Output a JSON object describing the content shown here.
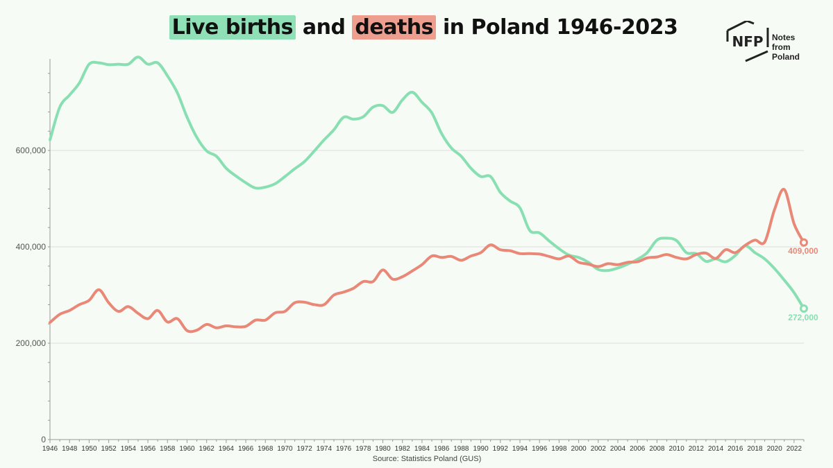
{
  "title": {
    "births_label": "Live births",
    "and_label": " and ",
    "deaths_label": "deaths",
    "rest_label": " in Poland 1946-2023"
  },
  "logo": {
    "mark": "NFP",
    "line1": "Notes from",
    "line2": "Poland"
  },
  "source": "Source: Statistics Poland (GUS)",
  "colors": {
    "births": "#88dfb2",
    "deaths": "#ea8878",
    "grid": "#dcdcdc",
    "axis": "#999999"
  },
  "chart_data": {
    "type": "line",
    "title": "Live births and deaths in Poland 1946-2023",
    "xlabel": "",
    "ylabel": "",
    "xlim": [
      1946,
      2023
    ],
    "ylim": [
      0,
      790000
    ],
    "yticks": [
      0,
      200000,
      400000,
      600000
    ],
    "ytick_labels": [
      "0",
      "200,000",
      "400,000",
      "600,000"
    ],
    "xticks": [
      1946,
      1948,
      1950,
      1952,
      1954,
      1956,
      1958,
      1960,
      1962,
      1964,
      1966,
      1968,
      1970,
      1972,
      1974,
      1976,
      1978,
      1980,
      1982,
      1984,
      1986,
      1988,
      1990,
      1992,
      1994,
      1996,
      1998,
      2000,
      2002,
      2004,
      2006,
      2008,
      2010,
      2012,
      2014,
      2016,
      2018,
      2020,
      2022
    ],
    "x": [
      1946,
      1947,
      1948,
      1949,
      1950,
      1951,
      1952,
      1953,
      1954,
      1955,
      1956,
      1957,
      1958,
      1959,
      1960,
      1961,
      1962,
      1963,
      1964,
      1965,
      1966,
      1967,
      1968,
      1969,
      1970,
      1971,
      1972,
      1973,
      1974,
      1975,
      1976,
      1977,
      1978,
      1979,
      1980,
      1981,
      1982,
      1983,
      1984,
      1985,
      1986,
      1987,
      1988,
      1989,
      1990,
      1991,
      1992,
      1993,
      1994,
      1995,
      1996,
      1997,
      1998,
      1999,
      2000,
      2001,
      2002,
      2003,
      2004,
      2005,
      2006,
      2007,
      2008,
      2009,
      2010,
      2011,
      2012,
      2013,
      2014,
      2015,
      2016,
      2017,
      2018,
      2019,
      2020,
      2021,
      2022,
      2023
    ],
    "series": [
      {
        "name": "Live births",
        "color": "#88dfb2",
        "end_label": "272,000",
        "values": [
          622000,
          690000,
          715000,
          740000,
          779000,
          782000,
          778000,
          779000,
          779000,
          794000,
          779000,
          782000,
          755000,
          720000,
          669000,
          627000,
          599000,
          588000,
          563000,
          547000,
          533000,
          522000,
          524000,
          531000,
          546000,
          562000,
          577000,
          599000,
          622000,
          643000,
          669000,
          665000,
          670000,
          690000,
          693000,
          679000,
          705000,
          721000,
          700000,
          678000,
          635000,
          605000,
          588000,
          563000,
          546000,
          546000,
          513000,
          495000,
          481000,
          434000,
          429000,
          412000,
          396000,
          383000,
          378000,
          368000,
          353000,
          351000,
          356000,
          364000,
          374000,
          388000,
          414000,
          418000,
          413000,
          388000,
          386000,
          370000,
          375000,
          369000,
          382000,
          402000,
          388000,
          375000,
          355000,
          331000,
          305000,
          272000
        ]
      },
      {
        "name": "Deaths",
        "color": "#ea8878",
        "end_label": "409,000",
        "values": [
          243000,
          260000,
          268000,
          280000,
          289000,
          311000,
          284000,
          266000,
          276000,
          262000,
          251000,
          268000,
          244000,
          251000,
          226000,
          227000,
          239000,
          232000,
          236000,
          234000,
          235000,
          248000,
          248000,
          263000,
          266000,
          284000,
          285000,
          280000,
          280000,
          300000,
          306000,
          314000,
          328000,
          328000,
          352000,
          333000,
          338000,
          350000,
          363000,
          381000,
          378000,
          380000,
          372000,
          381000,
          388000,
          404000,
          394000,
          392000,
          386000,
          386000,
          385000,
          380000,
          375000,
          381000,
          368000,
          364000,
          359000,
          365000,
          363000,
          368000,
          369000,
          377000,
          379000,
          384000,
          378000,
          375000,
          384000,
          387000,
          376000,
          394000,
          388000,
          403000,
          414000,
          410000,
          477000,
          519000,
          448000,
          409000
        ]
      }
    ]
  }
}
